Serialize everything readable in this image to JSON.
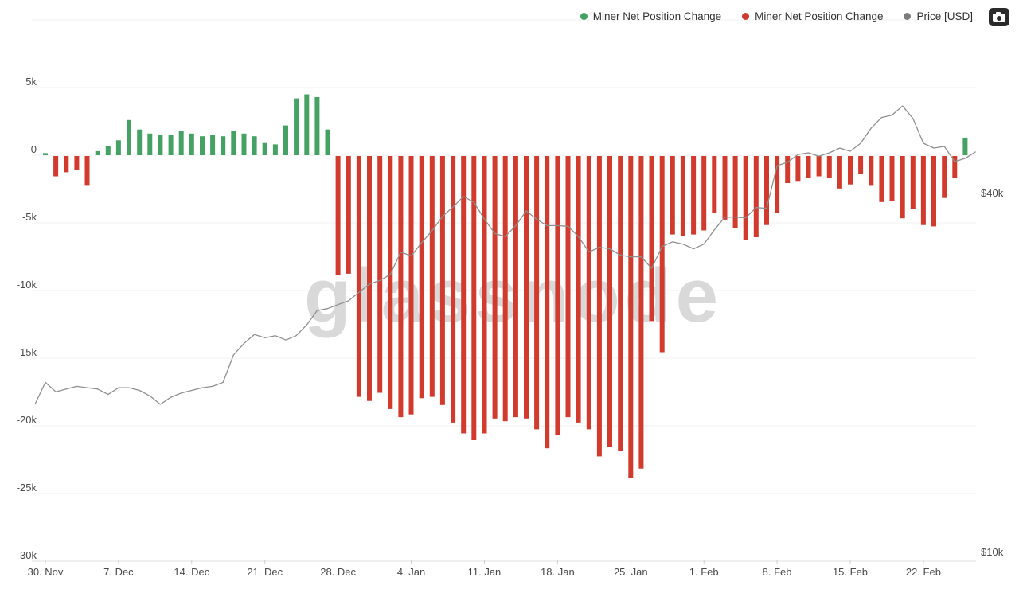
{
  "legend": {
    "items": [
      {
        "label": "Miner Net Position Change",
        "color": "#45a164"
      },
      {
        "label": "Miner Net Position Change",
        "color": "#d23a2e"
      },
      {
        "label": "Price [USD]",
        "color": "#7d7d7d"
      }
    ]
  },
  "watermark": {
    "text": "glassnode"
  },
  "colors": {
    "green_bar": "#45a164",
    "red_bar": "#d23a2e",
    "price_line": "#8f8f8f",
    "watermark": "#d9d9d9",
    "grid": "#f0f0f0",
    "axis_line": "#e2e2e2",
    "tick_mark": "#cdcdcd",
    "axis_text": "#4a4a4a",
    "legend_text": "#333333",
    "camera_bg": "#2b2b2b"
  },
  "chart_data": {
    "type": "bar",
    "title": "",
    "description": "Daily Miner Net Position Change bars (green positive, red negative, left axis, thousands) with BTC Price [USD] line overlay on logarithmic right axis. Daily data from 30. Nov to 26. Feb.",
    "bar_series_name": "Miner Net Position Change",
    "bar_values_k": [
      0.15,
      -1.5,
      -1.2,
      -1.0,
      -2.2,
      0.3,
      0.7,
      1.1,
      2.6,
      1.9,
      1.6,
      1.5,
      1.5,
      1.8,
      1.6,
      1.4,
      1.5,
      1.4,
      1.8,
      1.6,
      1.4,
      0.9,
      0.8,
      2.2,
      4.2,
      4.5,
      4.3,
      1.9,
      -8.8,
      -8.7,
      -17.8,
      -18.1,
      -17.5,
      -18.7,
      -19.3,
      -19.1,
      -17.9,
      -17.8,
      -18.4,
      -19.7,
      -20.5,
      -21.0,
      -20.5,
      -19.4,
      -19.6,
      -19.3,
      -19.4,
      -20.2,
      -21.6,
      -20.6,
      -19.3,
      -19.7,
      -20.2,
      -22.2,
      -21.5,
      -21.8,
      -23.8,
      -23.1,
      -12.2,
      -14.5,
      -5.8,
      -5.9,
      -5.8,
      -5.5,
      -4.2,
      -4.7,
      -5.3,
      -6.2,
      -6.0,
      -5.1,
      -4.2,
      -2.0,
      -1.9,
      -1.6,
      -1.5,
      -1.6,
      -2.4,
      -2.1,
      -1.3,
      -2.2,
      -3.4,
      -3.3,
      -4.6,
      -3.9,
      -5.1,
      -5.2,
      -3.1,
      -1.6,
      1.3
    ],
    "line_series_name": "Price [USD]",
    "price_start_day_offset": -1,
    "price_values_usd_k": [
      18.1,
      19.7,
      19.0,
      19.2,
      19.4,
      19.3,
      19.2,
      18.8,
      19.3,
      19.3,
      19.1,
      18.7,
      18.1,
      18.6,
      18.9,
      19.1,
      19.3,
      19.4,
      19.7,
      21.9,
      22.9,
      23.7,
      23.4,
      23.6,
      23.2,
      23.6,
      24.6,
      26.0,
      26.2,
      26.6,
      27.0,
      27.9,
      28.8,
      29.2,
      29.9,
      32.6,
      32.1,
      33.8,
      35.4,
      37.4,
      38.8,
      40.4,
      39.5,
      37.0,
      35.0,
      34.6,
      36.1,
      38.2,
      37.0,
      36.1,
      36.1,
      36.0,
      34.6,
      32.6,
      33.2,
      33.0,
      32.2,
      32.0,
      32.0,
      30.6,
      33.3,
      33.9,
      33.6,
      33.0,
      33.6,
      35.5,
      37.3,
      37.3,
      37.2,
      38.7,
      38.6,
      45.5,
      46.1,
      47.5,
      47.8,
      47.2,
      47.8,
      48.7,
      48.1,
      49.6,
      52.6,
      54.8,
      55.3,
      57.3,
      54.6,
      49.6,
      48.7,
      49.0,
      46.2,
      46.8,
      48.0
    ],
    "y_axis": {
      "tick_labels": [
        "5k",
        "0",
        "-5k",
        "-10k",
        "-15k",
        "-20k",
        "-25k",
        "-30k"
      ],
      "tick_values_k": [
        5,
        0,
        -5,
        -10,
        -15,
        -20,
        -25,
        -30
      ],
      "gridline_values_k": [
        10,
        5,
        0,
        -5,
        -10,
        -15,
        -20,
        -25,
        -30
      ],
      "range_k": [
        -30,
        10
      ]
    },
    "x_axis": {
      "tick_labels": [
        "30. Nov",
        "7. Dec",
        "14. Dec",
        "21. Dec",
        "28. Dec",
        "4. Jan",
        "11. Jan",
        "18. Jan",
        "25. Jan",
        "1. Feb",
        "8. Feb",
        "15. Feb",
        "22. Feb"
      ],
      "tick_day_indices": [
        0,
        7,
        14,
        21,
        28,
        35,
        42,
        49,
        56,
        63,
        70,
        77,
        84
      ]
    },
    "right_axis": {
      "labels": [
        "$40k",
        "$10k"
      ],
      "price_values_k": [
        40,
        10
      ],
      "scale": "log"
    },
    "legend_position": "top-right",
    "grid": true
  }
}
